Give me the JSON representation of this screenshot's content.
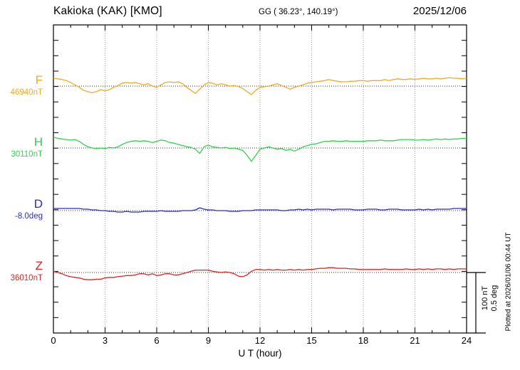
{
  "header": {
    "station": "Kakioka (KAK)  [KMO]",
    "coords": "GG ( 36.23°, 140.19°)",
    "date": "2025/12/06"
  },
  "x_axis": {
    "title": "U T (hour)"
  },
  "scale_bar": {
    "line1": "100 nT",
    "line2": "0.5 deg"
  },
  "footer": {
    "plotted_at": "Plotted at 2026/01/06 00:44 UT"
  },
  "colors": {
    "grid": "#999999",
    "baseline": "#333333",
    "frame": "#000000"
  },
  "chart_data": {
    "type": "line",
    "title": "Kakioka (KAK) [KMO] magnetogram 2025/12/06",
    "x_label": "U T (hour)",
    "x_range_hours": [
      0,
      24
    ],
    "x_step_hours": 0.25,
    "x_tick_hours": [
      0,
      3,
      6,
      9,
      12,
      15,
      18,
      21,
      24
    ],
    "x_tick_labels": [
      "0",
      "3",
      "6",
      "9",
      "12",
      "15",
      "18",
      "21",
      "24"
    ],
    "vertical_scale": "100 nT / 0.5 deg",
    "series": [
      {
        "name": "F",
        "label": "F",
        "unit": "nT",
        "baseline_value": 46940,
        "baseline_label": "46940nT",
        "color": "#f7a823",
        "values": [
          46953,
          46952,
          46951,
          46949,
          46946,
          46942,
          46938,
          46933,
          46931,
          46929,
          46931,
          46934,
          46932,
          46934,
          46938,
          46941,
          46945,
          46946,
          46945,
          46946,
          46944,
          46942,
          46944,
          46940,
          46938,
          46942,
          46946,
          46947,
          46946,
          46947,
          46944,
          46938,
          46933,
          46928,
          46935,
          46942,
          46946,
          46945,
          46942,
          46944,
          46942,
          46940,
          46941,
          46939,
          46936,
          46931,
          46926,
          46933,
          46938,
          46939,
          46940,
          46942,
          46944,
          46941,
          46938,
          46935,
          46938,
          46940,
          46942,
          46945,
          46946,
          46947,
          46948,
          46949,
          46951,
          46949,
          46948,
          46947,
          46947,
          46948,
          46948,
          46949,
          46949,
          46948,
          46949,
          46949,
          46949,
          46951,
          46949,
          46951,
          46952,
          46951,
          46951,
          46952,
          46951,
          46952,
          46953,
          46952,
          46952,
          46953,
          46952,
          46953,
          46954,
          46953,
          46953,
          46952,
          46953
        ]
      },
      {
        "name": "H",
        "label": "H",
        "unit": "nT",
        "baseline_value": 30110,
        "baseline_label": "30110nT",
        "color": "#30d24e",
        "values": [
          30128,
          30126,
          30125,
          30124,
          30123,
          30124,
          30121,
          30116,
          30112,
          30110,
          30109,
          30110,
          30109,
          30111,
          30110,
          30112,
          30116,
          30119,
          30121,
          30122,
          30121,
          30122,
          30121,
          30119,
          30121,
          30123,
          30122,
          30119,
          30118,
          30116,
          30114,
          30112,
          30111,
          30108,
          30101,
          30112,
          30115,
          30112,
          30111,
          30110,
          30111,
          30109,
          30110,
          30108,
          30106,
          30098,
          30088,
          30098,
          30108,
          30110,
          30112,
          30110,
          30108,
          30109,
          30106,
          30108,
          30105,
          30108,
          30112,
          30114,
          30116,
          30117,
          30119,
          30121,
          30121,
          30122,
          30121,
          30121,
          30122,
          30121,
          30121,
          30121,
          30121,
          30122,
          30122,
          30122,
          30123,
          30122,
          30122,
          30122,
          30123,
          30124,
          30124,
          30124,
          30123,
          30123,
          30124,
          30123,
          30124,
          30125,
          30124,
          30125,
          30124,
          30125,
          30125,
          30126,
          30126
        ]
      },
      {
        "name": "D",
        "label": "D",
        "unit": "deg",
        "baseline_value": -8.0,
        "baseline_label": "-8.0deg",
        "color": "#2b2bd0",
        "values": [
          -7.965,
          -7.965,
          -7.965,
          -7.965,
          -7.965,
          -7.965,
          -7.965,
          -7.976,
          -7.976,
          -7.988,
          -7.988,
          -8.0,
          -8.0,
          -8.012,
          -8.012,
          -8.024,
          -8.024,
          -8.012,
          -8.024,
          -8.024,
          -8.024,
          -8.012,
          -8.012,
          -8.012,
          -8.012,
          -8.0,
          -8.012,
          -8.012,
          -8.012,
          -8.012,
          -8.0,
          -8.0,
          -8.0,
          -7.988,
          -7.953,
          -7.976,
          -7.988,
          -7.988,
          -8.0,
          -8.0,
          -8.0,
          -8.012,
          -8.012,
          -8.012,
          -8.0,
          -8.0,
          -8.0,
          -7.988,
          -7.988,
          -7.988,
          -7.988,
          -7.988,
          -7.988,
          -8.0,
          -8.0,
          -7.988,
          -7.988,
          -7.976,
          -7.988,
          -7.976,
          -7.988,
          -7.976,
          -7.976,
          -7.976,
          -7.976,
          -7.988,
          -7.976,
          -7.976,
          -7.976,
          -7.976,
          -7.988,
          -7.988,
          -7.988,
          -7.976,
          -7.976,
          -7.976,
          -7.988,
          -7.988,
          -7.976,
          -7.976,
          -7.976,
          -7.988,
          -7.988,
          -7.988,
          -7.988,
          -7.976,
          -7.988,
          -7.976,
          -7.988,
          -7.976,
          -7.976,
          -7.976,
          -7.976,
          -7.965,
          -7.965,
          -7.965,
          -7.965
        ]
      },
      {
        "name": "Z",
        "label": "Z",
        "unit": "nT",
        "baseline_value": 36010,
        "baseline_label": "36010nT",
        "color": "#e32222",
        "values": [
          36012,
          36010,
          36008,
          36005,
          36003,
          36002,
          36001,
          35999,
          35998,
          35998,
          35999,
          35999,
          36001,
          36002,
          36002,
          36003,
          36004,
          36005,
          36005,
          36006,
          36008,
          36008,
          36006,
          36008,
          36005,
          36006,
          36008,
          36008,
          36006,
          36006,
          36008,
          36010,
          36012,
          36014,
          36014,
          36014,
          36014,
          36012,
          36011,
          36010,
          36011,
          36010,
          36008,
          36004,
          36003,
          36006,
          36012,
          36015,
          36015,
          36014,
          36015,
          36014,
          36015,
          36014,
          36014,
          36015,
          36014,
          36015,
          36014,
          36015,
          36015,
          36016,
          36017,
          36017,
          36018,
          36018,
          36017,
          36017,
          36017,
          36016,
          36016,
          36015,
          36015,
          36015,
          36015,
          36015,
          36015,
          36016,
          36015,
          36015,
          36015,
          36015,
          36016,
          36015,
          36015,
          36016,
          36015,
          36016,
          36015,
          36016,
          36016,
          36015,
          36016,
          36015,
          36016,
          36016,
          36016
        ]
      }
    ]
  }
}
